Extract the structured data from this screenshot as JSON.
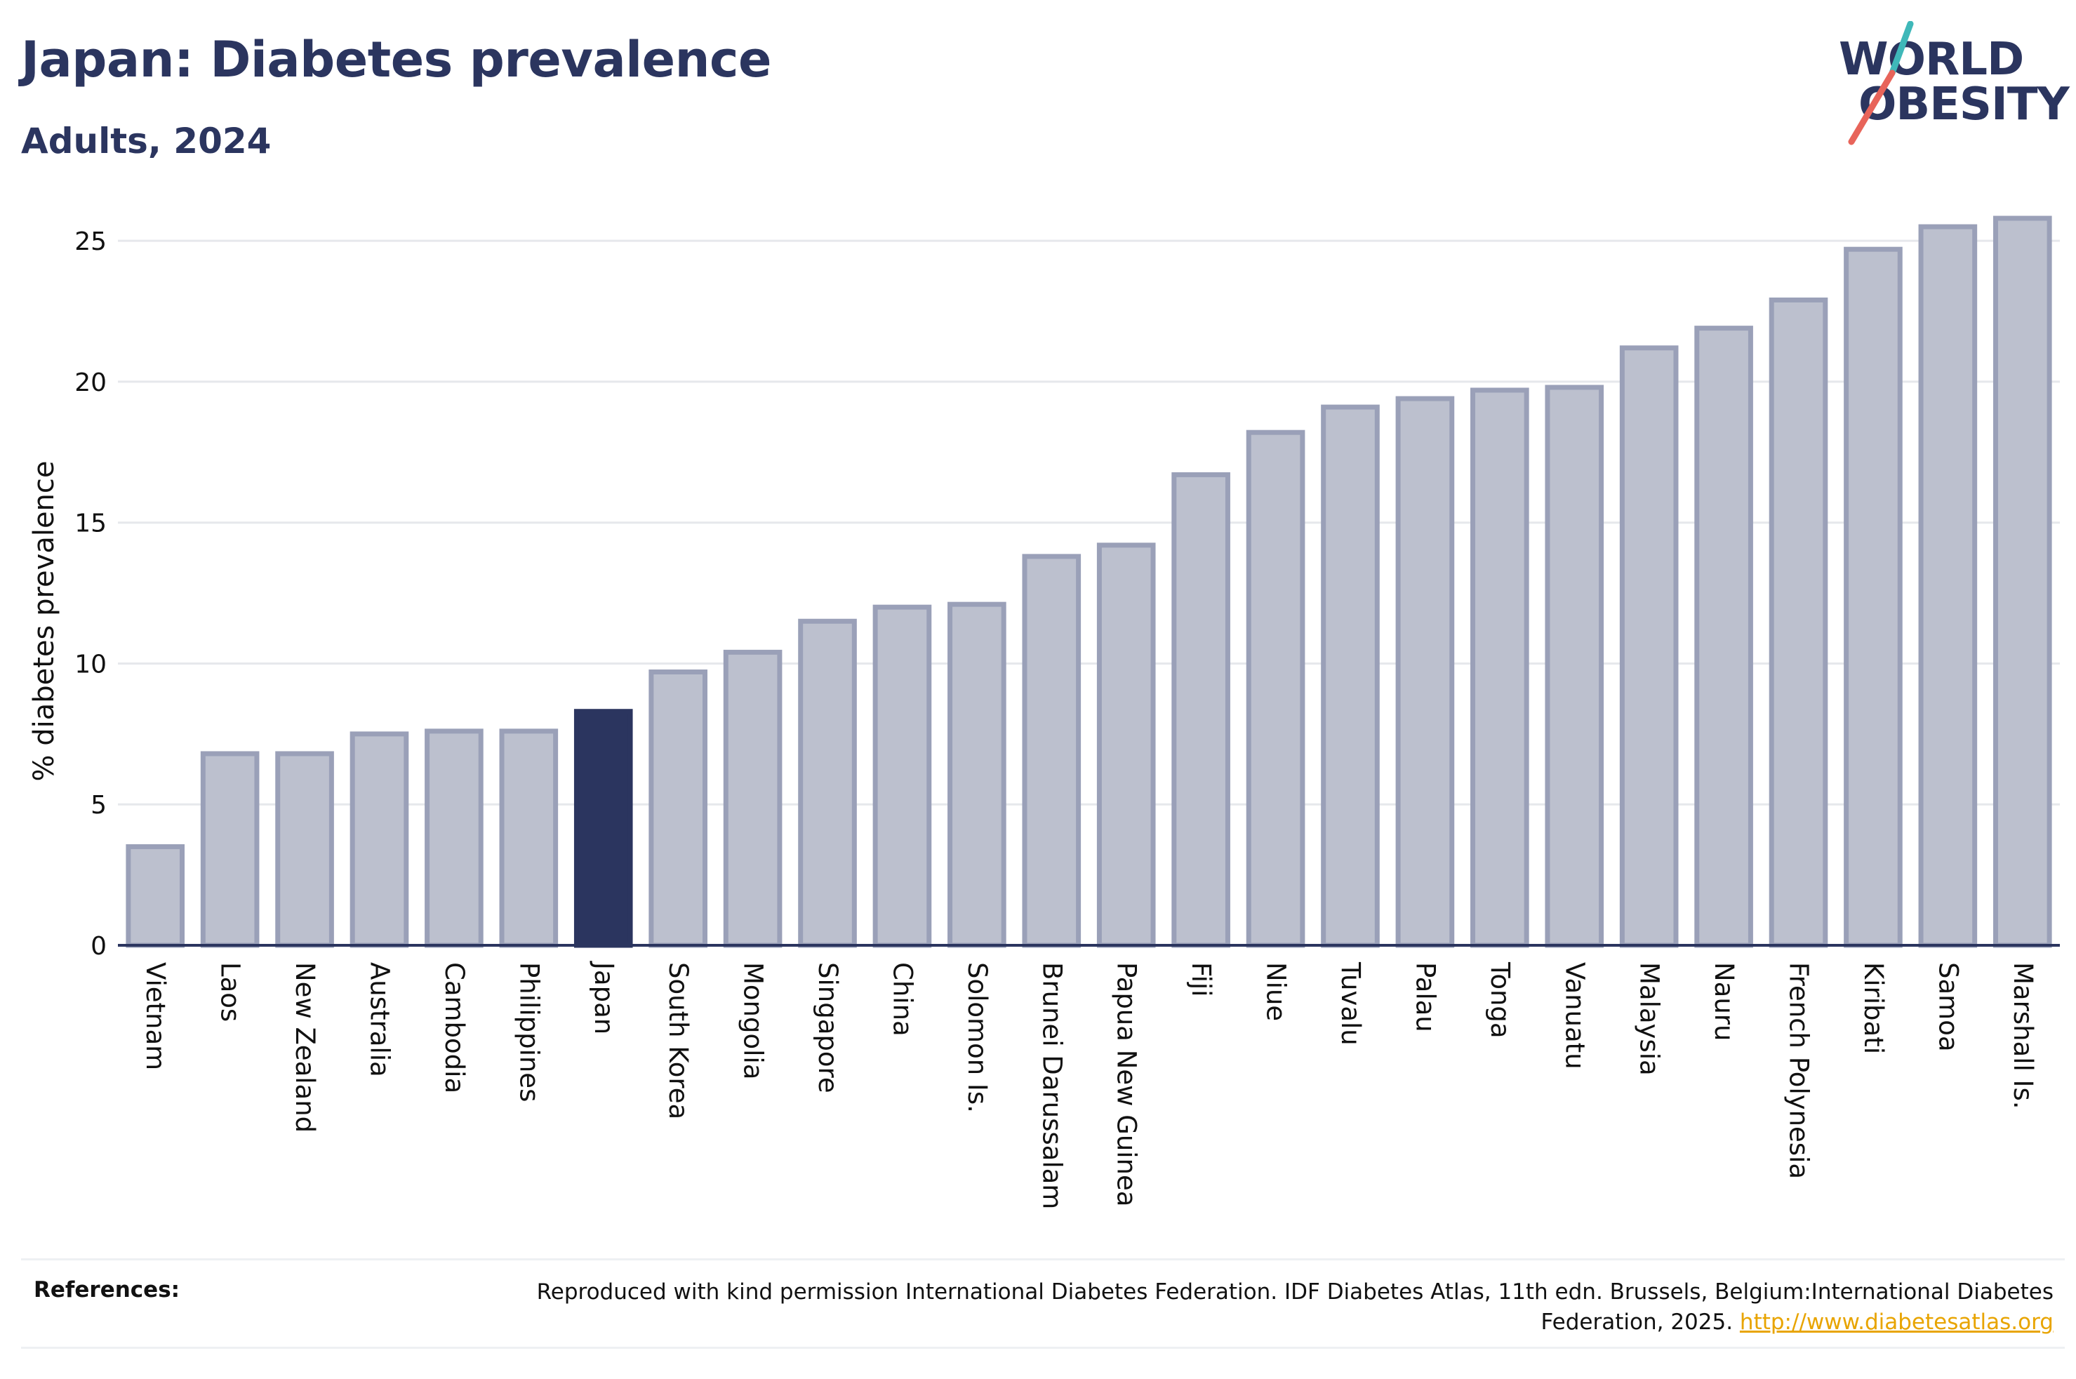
{
  "header": {
    "title": "Japan: Diabetes prevalence",
    "subtitle": "Adults, 2024"
  },
  "logo": {
    "line1": "WORLD",
    "line2": "OBESITY",
    "slash_colors": [
      "#3fb8b9",
      "#e8645a"
    ]
  },
  "chart_data": {
    "type": "bar",
    "ylabel": "% diabetes prevalence",
    "xlabel": "",
    "ylim": [
      0,
      26
    ],
    "yticks": [
      0,
      5,
      10,
      15,
      20,
      25
    ],
    "grid": true,
    "highlight": "Japan",
    "colors": {
      "bar": "#bcc0ce",
      "bar_border": "#9aa0b8",
      "highlight": "#2b355f",
      "grid": "#e6e8ec",
      "axis": "#2b355f"
    },
    "categories": [
      "Vietnam",
      "Laos",
      "New Zealand",
      "Australia",
      "Cambodia",
      "Philippines",
      "Japan",
      "South Korea",
      "Mongolia",
      "Singapore",
      "China",
      "Solomon Is.",
      "Brunei Darussalam",
      "Papua New Guinea",
      "Fiji",
      "Niue",
      "Tuvalu",
      "Palau",
      "Tonga",
      "Vanuatu",
      "Malaysia",
      "Nauru",
      "French Polynesia",
      "Kiribati",
      "Samoa",
      "Marshall Is."
    ],
    "values": [
      3.5,
      6.8,
      6.8,
      7.5,
      7.6,
      7.6,
      8.3,
      9.7,
      10.4,
      11.5,
      12.0,
      12.1,
      13.8,
      14.2,
      16.7,
      18.2,
      19.1,
      19.4,
      19.7,
      19.8,
      21.2,
      21.9,
      22.9,
      24.7,
      25.5,
      25.8
    ]
  },
  "references": {
    "label": "References:",
    "text": "Reproduced with kind permission International Diabetes Federation. IDF Diabetes Atlas, 11th edn. Brussels, Belgium:International Diabetes Federation, 2025. ",
    "link": "http://www.diabetesatlas.org"
  }
}
